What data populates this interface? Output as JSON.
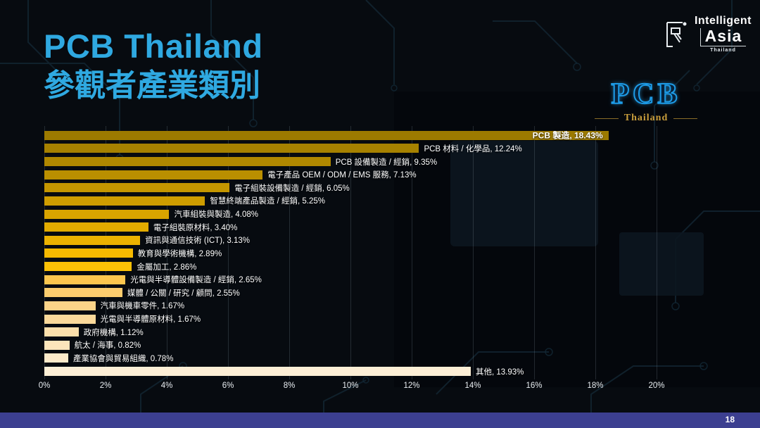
{
  "header": {
    "title_line1": "PCB Thailand",
    "title_line2": "參觀者產業類別"
  },
  "logos": {
    "intelligent_asia": {
      "line1": "Intelligent",
      "line2": "Asia",
      "line3": "Thailand"
    },
    "pcb_thailand": {
      "main": "PCB",
      "sub": "Thailand"
    }
  },
  "footer": {
    "page_number": "18"
  },
  "colors": {
    "title_accent": "#2fa9e1",
    "footer_bar": "#3c3f90",
    "pcb_logo_blue": "#1d9be6",
    "pcb_logo_gold": "#c99e3c"
  },
  "chart_data": {
    "type": "bar",
    "orientation": "horizontal",
    "title": "",
    "xlabel": "",
    "ylabel": "",
    "xlim": [
      0,
      20
    ],
    "grid": true,
    "x_axis": {
      "max": 20,
      "ticks": [
        "0%",
        "2%",
        "4%",
        "6%",
        "8%",
        "10%",
        "12%",
        "14%",
        "16%",
        "18%",
        "20%"
      ]
    },
    "items": [
      {
        "label": "PCB 製造",
        "value": 18.43,
        "display": "PCB 製造, 18.43%",
        "color": "#9c7a00",
        "label_inside": true
      },
      {
        "label": "PCB 材料 / 化學品",
        "value": 12.24,
        "display": "PCB 材料 / 化學品, 12.24%",
        "color": "#a68100",
        "label_inside": false
      },
      {
        "label": "PCB 設備製造 / 經銷",
        "value": 9.35,
        "display": "PCB 設備製造 / 經銷, 9.35%",
        "color": "#b08800",
        "label_inside": false
      },
      {
        "label": "電子產品 OEM / ODM / EMS 服務",
        "value": 7.13,
        "display": "電子產品 OEM / ODM / EMS 服務, 7.13%",
        "color": "#ba8f00",
        "label_inside": false
      },
      {
        "label": "電子組裝設備製造 / 經銷",
        "value": 6.05,
        "display": "電子組裝設備製造 / 經銷, 6.05%",
        "color": "#c49600",
        "label_inside": false
      },
      {
        "label": "智慧終端產品製造 / 經銷",
        "value": 5.25,
        "display": "智慧終端產品製造 / 經銷, 5.25%",
        "color": "#ce9d00",
        "label_inside": false
      },
      {
        "label": "汽車組裝與製造",
        "value": 4.08,
        "display": "汽車組裝與製造, 4.08%",
        "color": "#d8a400",
        "label_inside": false
      },
      {
        "label": "電子組裝原材料",
        "value": 3.4,
        "display": "電子組裝原材料, 3.40%",
        "color": "#e2ab00",
        "label_inside": false
      },
      {
        "label": "資訊與通信技術 (ICT)",
        "value": 3.13,
        "display": "資訊與通信技術 (ICT), 3.13%",
        "color": "#ecb200",
        "label_inside": false
      },
      {
        "label": "教育與學術機構",
        "value": 2.89,
        "display": "教育與學術機構, 2.89%",
        "color": "#f6b900",
        "label_inside": false
      },
      {
        "label": "金屬加工",
        "value": 2.86,
        "display": "金屬加工, 2.86%",
        "color": "#fcc106",
        "label_inside": false
      },
      {
        "label": "光電與半導體設備製造 / 經銷",
        "value": 2.65,
        "display": "光電與半導體設備製造 / 經銷, 2.65%",
        "color": "#fcc64e",
        "label_inside": false
      },
      {
        "label": "媒體 / 公關 / 研究 / 顧問",
        "value": 2.55,
        "display": "媒體 / 公關 / 研究 / 顧問, 2.55%",
        "color": "#fccd6e",
        "label_inside": false
      },
      {
        "label": "汽車與機車零件",
        "value": 1.67,
        "display": "汽車與機車零件, 1.67%",
        "color": "#fbd388",
        "label_inside": false
      },
      {
        "label": "光電與半導體原材料",
        "value": 1.67,
        "display": "光電與半導體原材料, 1.67%",
        "color": "#fbd99a",
        "label_inside": false
      },
      {
        "label": "政府機構",
        "value": 1.12,
        "display": "政府機構, 1.12%",
        "color": "#fcdfab",
        "label_inside": false
      },
      {
        "label": "航太 / 海事",
        "value": 0.82,
        "display": "航太 / 海事, 0.82%",
        "color": "#fce5bb",
        "label_inside": false
      },
      {
        "label": "產業協會與貿易組織",
        "value": 0.78,
        "display": "產業協會與貿易組織, 0.78%",
        "color": "#fdeac9",
        "label_inside": false
      },
      {
        "label": "其他",
        "value": 13.93,
        "display": "其他, 13.93%",
        "color": "#fdefd6",
        "label_inside": false
      }
    ]
  }
}
